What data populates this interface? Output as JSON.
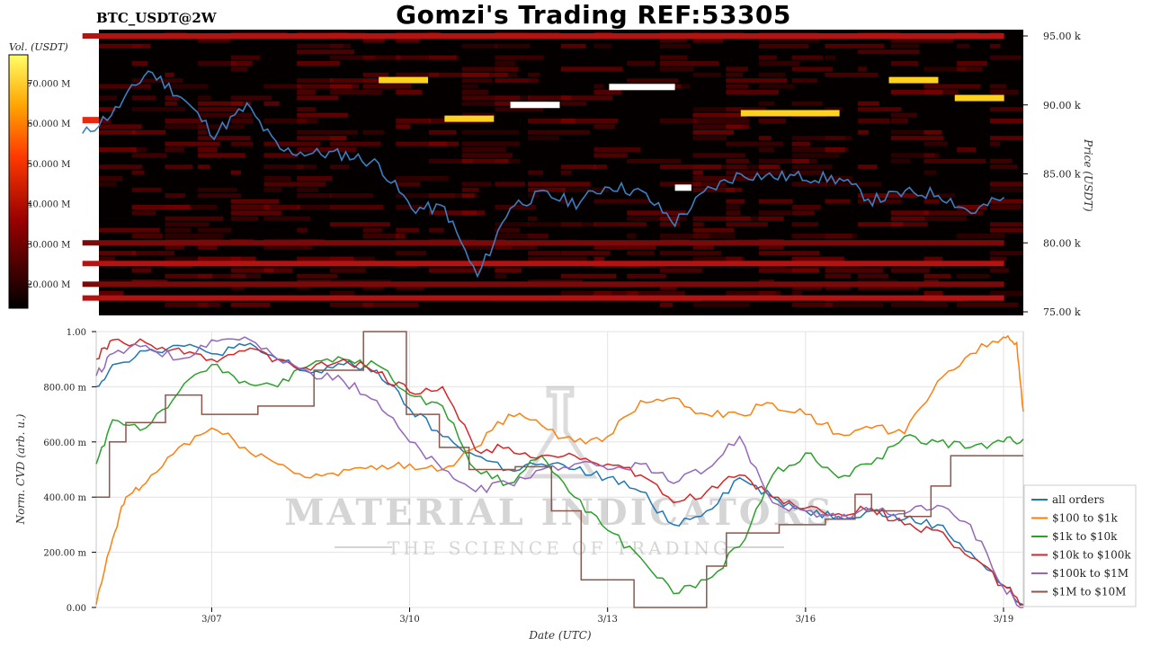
{
  "title": "Gomzi's Trading REF:53305",
  "symbol": "BTC_USDT@2W",
  "chart_data": [
    {
      "type": "heatmap",
      "colorbar_label": "Vol. (USDT)",
      "colorbar_ticks": [
        "70.000 M",
        "60.000 M",
        "50.000 M",
        "40.000 M",
        "30.000 M",
        "20.000 M"
      ],
      "colorbar_values": [
        70000000,
        60000000,
        50000000,
        40000000,
        30000000,
        20000000
      ],
      "colorbar_range": [
        14000000,
        77000000
      ],
      "ylabel": "Price (USDT)",
      "y_ticks": [
        "95.00 k",
        "90.00 k",
        "85.00 k",
        "80.00 k",
        "75.00 k"
      ],
      "y_tick_values": [
        95000,
        90000,
        85000,
        80000,
        75000
      ],
      "ylim": [
        75000,
        95300
      ],
      "x_range_days": [
        "3/5 06:00",
        "3/19 07:00"
      ],
      "price_series": {
        "name": "",
        "color": "#3a7fc1",
        "x": [
          "3/5",
          "3/5 12:00",
          "3/6",
          "3/6 12:00",
          "3/7",
          "3/7 12:00",
          "3/8",
          "3/8 12:00",
          "3/9",
          "3/9 12:00",
          "3/10",
          "3/10 12:00",
          "3/11",
          "3/11 12:00",
          "3/12",
          "3/12 12:00",
          "3/13",
          "3/13 12:00",
          "3/14",
          "3/14 12:00",
          "3/15",
          "3/15 12:00",
          "3/16",
          "3/16 12:00",
          "3/17",
          "3/17 12:00",
          "3/18",
          "3/18 12:00",
          "3/19"
        ],
        "y": [
          87800,
          89600,
          92500,
          90600,
          87900,
          89900,
          86700,
          86500,
          86400,
          85700,
          82500,
          82500,
          77500,
          82700,
          83500,
          82900,
          84200,
          83600,
          81500,
          83800,
          85000,
          84800,
          84800,
          84600,
          83100,
          83600,
          83600,
          82200,
          83300
        ]
      },
      "bands": [
        {
          "price": 95000,
          "start": "3/5",
          "end": "3/19",
          "level": "medium"
        },
        {
          "price": 91800,
          "start": "3/9 12:00",
          "end": "3/10 06:00",
          "level": "yellow"
        },
        {
          "price": 91300,
          "start": "3/13",
          "end": "3/14",
          "level": "white"
        },
        {
          "price": 90000,
          "start": "3/11 12:00",
          "end": "3/12 06:00",
          "level": "white"
        },
        {
          "price": 89400,
          "start": "3/15",
          "end": "3/16 12:00",
          "level": "yellow"
        },
        {
          "price": 89000,
          "start": "3/10 12:00",
          "end": "3/11 06:00",
          "level": "yellow"
        },
        {
          "price": 88900,
          "start": "3/5",
          "end": "3/5 06:00",
          "level": "high"
        },
        {
          "price": 91800,
          "start": "3/17 06:00",
          "end": "3/18",
          "level": "yellow"
        },
        {
          "price": 90500,
          "start": "3/18 06:00",
          "end": "3/19",
          "level": "yellow"
        },
        {
          "price": 84000,
          "start": "3/14",
          "end": "3/14 06:00",
          "level": "white"
        },
        {
          "price": 80000,
          "start": "3/5",
          "end": "3/19",
          "level": "low"
        },
        {
          "price": 78500,
          "start": "3/5",
          "end": "3/19",
          "level": "medium"
        },
        {
          "price": 77000,
          "start": "3/5",
          "end": "3/19",
          "level": "low"
        },
        {
          "price": 76000,
          "start": "3/5",
          "end": "3/19",
          "level": "medium"
        }
      ]
    },
    {
      "type": "line",
      "title": "",
      "xlabel": "Date (UTC)",
      "ylabel": "Norm. CVD (arb. u.)",
      "x_ticks": [
        "3/07",
        "3/10",
        "3/13",
        "3/16",
        "3/19"
      ],
      "x_tick_days": [
        7,
        10,
        13,
        16,
        19
      ],
      "x_range_days": [
        5.25,
        19.3
      ],
      "y_ticks": [
        "1.00",
        "800.00 m",
        "600.00 m",
        "400.00 m",
        "200.00 m",
        "0.00"
      ],
      "y_tick_values": [
        1,
        0.8,
        0.6,
        0.4,
        0.2,
        0
      ],
      "ylim": [
        0,
        1
      ],
      "grid": true,
      "legend_position": "bottom-right",
      "watermark": {
        "main": "MATERIAL INDICATORS",
        "sub": "THE SCIENCE OF TRADING"
      },
      "series": [
        {
          "name": "all orders",
          "color": "#1f77b4",
          "step": false,
          "x": [
            5.25,
            5.5,
            6,
            6.5,
            7,
            7.5,
            8,
            8.5,
            9,
            9.5,
            10,
            10.5,
            11,
            11.5,
            12,
            12.5,
            13,
            13.5,
            14,
            14.5,
            15,
            15.5,
            16,
            16.5,
            17,
            17.5,
            18,
            18.5,
            19,
            19.3
          ],
          "y": [
            0.8,
            0.88,
            0.93,
            0.95,
            0.92,
            0.95,
            0.9,
            0.85,
            0.88,
            0.86,
            0.72,
            0.62,
            0.55,
            0.5,
            0.52,
            0.5,
            0.47,
            0.42,
            0.3,
            0.35,
            0.47,
            0.4,
            0.35,
            0.33,
            0.35,
            0.32,
            0.3,
            0.2,
            0.08,
            0.01
          ]
        },
        {
          "name": "$100 to $1k",
          "color": "#ff7f0e",
          "step": false,
          "x": [
            5.25,
            5.5,
            5.7,
            6,
            6.5,
            7,
            7.5,
            8,
            8.5,
            9,
            9.5,
            10,
            10.5,
            11,
            11.5,
            12,
            12.5,
            13,
            13.5,
            14,
            14.5,
            15,
            15.5,
            16,
            16.5,
            17,
            17.5,
            18,
            18.5,
            19,
            19.2,
            19.3
          ],
          "y": [
            0.01,
            0.25,
            0.4,
            0.45,
            0.58,
            0.65,
            0.58,
            0.52,
            0.47,
            0.5,
            0.5,
            0.52,
            0.5,
            0.58,
            0.7,
            0.66,
            0.6,
            0.62,
            0.75,
            0.76,
            0.7,
            0.7,
            0.74,
            0.7,
            0.63,
            0.65,
            0.63,
            0.82,
            0.92,
            0.98,
            0.96,
            0.71
          ]
        },
        {
          "name": "$1k to $10k",
          "color": "#2ca02c",
          "step": false,
          "x": [
            5.25,
            5.5,
            6,
            6.5,
            7,
            7.5,
            8,
            8.5,
            9,
            9.5,
            10,
            10.5,
            11,
            11.5,
            12,
            12.5,
            13,
            13.5,
            14,
            14.5,
            15,
            15.5,
            16,
            16.5,
            17,
            17.5,
            18,
            18.5,
            19,
            19.3
          ],
          "y": [
            0.52,
            0.68,
            0.65,
            0.78,
            0.88,
            0.82,
            0.8,
            0.88,
            0.9,
            0.88,
            0.77,
            0.73,
            0.5,
            0.45,
            0.55,
            0.4,
            0.28,
            0.18,
            0.05,
            0.1,
            0.22,
            0.48,
            0.56,
            0.47,
            0.52,
            0.62,
            0.6,
            0.58,
            0.6,
            0.61
          ]
        },
        {
          "name": "$10k to $100k",
          "color": "#d62728",
          "step": false,
          "x": [
            5.25,
            5.5,
            6,
            6.5,
            7,
            7.5,
            8,
            8.5,
            9,
            9.5,
            10,
            10.5,
            11,
            11.5,
            12,
            12.5,
            13,
            13.5,
            14,
            14.5,
            15,
            15.5,
            16,
            16.5,
            17,
            17.5,
            18,
            18.5,
            19,
            19.3
          ],
          "y": [
            0.9,
            0.97,
            0.96,
            0.94,
            0.9,
            0.93,
            0.9,
            0.86,
            0.9,
            0.85,
            0.78,
            0.8,
            0.57,
            0.58,
            0.55,
            0.55,
            0.52,
            0.48,
            0.38,
            0.42,
            0.48,
            0.4,
            0.36,
            0.34,
            0.36,
            0.3,
            0.28,
            0.18,
            0.08,
            0.01
          ]
        },
        {
          "name": "$100k to $1M",
          "color": "#9467bd",
          "step": false,
          "x": [
            5.25,
            5.5,
            6,
            6.5,
            7,
            7.5,
            8,
            8.5,
            9,
            9.5,
            10,
            10.5,
            11,
            11.5,
            12,
            12.5,
            13,
            13.5,
            14,
            14.5,
            15,
            15.5,
            16,
            16.5,
            17,
            17.5,
            18,
            18.5,
            19,
            19.3
          ],
          "y": [
            0.84,
            0.92,
            0.95,
            0.9,
            0.97,
            0.98,
            0.9,
            0.85,
            0.82,
            0.75,
            0.6,
            0.5,
            0.42,
            0.45,
            0.5,
            0.52,
            0.5,
            0.52,
            0.45,
            0.5,
            0.62,
            0.38,
            0.35,
            0.32,
            0.35,
            0.34,
            0.37,
            0.3,
            0.07,
            0.0
          ]
        },
        {
          "name": "$1M to $10M",
          "color": "#8c564b",
          "step": true,
          "x": [
            5.25,
            5.45,
            5.7,
            6.3,
            6.85,
            7.7,
            8.55,
            9.3,
            9.95,
            10.45,
            10.9,
            11.6,
            12.15,
            12.6,
            13.4,
            13.6,
            14.5,
            14.8,
            15.6,
            16.3,
            16.75,
            17.0,
            17.5,
            17.9,
            18.2,
            18.5,
            19.3
          ],
          "y": [
            0.4,
            0.6,
            0.67,
            0.77,
            0.7,
            0.73,
            0.86,
            1.0,
            0.7,
            0.58,
            0.5,
            0.51,
            0.35,
            0.1,
            0.0,
            0.0,
            0.15,
            0.27,
            0.3,
            0.32,
            0.41,
            0.35,
            0.33,
            0.44,
            0.55,
            0.55,
            0.55
          ]
        }
      ]
    }
  ]
}
